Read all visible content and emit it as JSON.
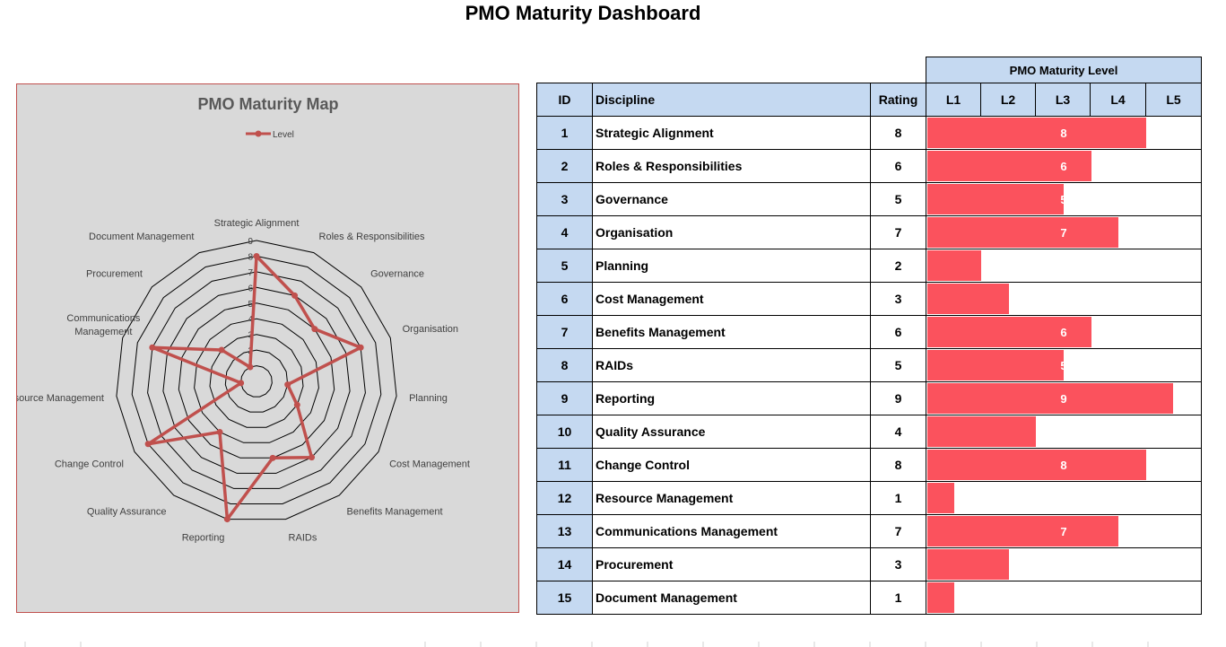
{
  "title": "PMO Maturity Dashboard",
  "chart_data": {
    "type": "radar",
    "title": "PMO Maturity Map",
    "legend": [
      "Level"
    ],
    "legend_position": "top",
    "categories": [
      "Strategic Alignment",
      "Roles & Responsibilities",
      "Governance",
      "Organisation",
      "Planning",
      "Cost Management",
      "Benefits Management",
      "RAIDs",
      "Reporting",
      "Quality Assurance",
      "Change Control",
      "Resource Management",
      "Communications Management",
      "Procurement",
      "Document Management"
    ],
    "series": [
      {
        "name": "Level",
        "values": [
          8,
          6,
          5,
          7,
          2,
          3,
          6,
          5,
          9,
          4,
          8,
          1,
          7,
          3,
          1
        ]
      }
    ],
    "rlim": [
      0,
      9
    ],
    "ticks": [
      1,
      2,
      3,
      4,
      5,
      6,
      7,
      8,
      9
    ],
    "color": "#c0504d"
  },
  "table": {
    "group_header": "PMO Maturity Level",
    "headers": {
      "id": "ID",
      "discipline": "Discipline",
      "rating": "Rating"
    },
    "levels": [
      "L1",
      "L2",
      "L3",
      "L4",
      "L5"
    ],
    "max_level": 10,
    "bar_color": "#fb525d",
    "rows": [
      {
        "id": "1",
        "discipline": "Strategic Alignment",
        "rating": "8",
        "value": 8,
        "bar_label": "8"
      },
      {
        "id": "2",
        "discipline": "Roles & Responsibilities",
        "rating": "6",
        "value": 6,
        "bar_label": "6"
      },
      {
        "id": "3",
        "discipline": "Governance",
        "rating": "5",
        "value": 5,
        "bar_label": "5"
      },
      {
        "id": "4",
        "discipline": "Organisation",
        "rating": "7",
        "value": 7,
        "bar_label": "7"
      },
      {
        "id": "5",
        "discipline": "Planning",
        "rating": "2",
        "value": 2,
        "bar_label": ""
      },
      {
        "id": "6",
        "discipline": "Cost Management",
        "rating": "3",
        "value": 3,
        "bar_label": ""
      },
      {
        "id": "7",
        "discipline": "Benefits Management",
        "rating": "6",
        "value": 6,
        "bar_label": "6"
      },
      {
        "id": "8",
        "discipline": "RAIDs",
        "rating": "5",
        "value": 5,
        "bar_label": "5"
      },
      {
        "id": "9",
        "discipline": "Reporting",
        "rating": "9",
        "value": 9,
        "bar_label": "9"
      },
      {
        "id": "10",
        "discipline": "Quality Assurance",
        "rating": "4",
        "value": 4,
        "bar_label": ""
      },
      {
        "id": "11",
        "discipline": "Change Control",
        "rating": "8",
        "value": 8,
        "bar_label": "8"
      },
      {
        "id": "12",
        "discipline": "Resource Management",
        "rating": "1",
        "value": 1,
        "bar_label": ""
      },
      {
        "id": "13",
        "discipline": "Communications Management",
        "rating": "7",
        "value": 7,
        "bar_label": "7"
      },
      {
        "id": "14",
        "discipline": "Procurement",
        "rating": "3",
        "value": 3,
        "bar_label": ""
      },
      {
        "id": "15",
        "discipline": "Document Management",
        "rating": "1",
        "value": 1,
        "bar_label": ""
      }
    ]
  }
}
